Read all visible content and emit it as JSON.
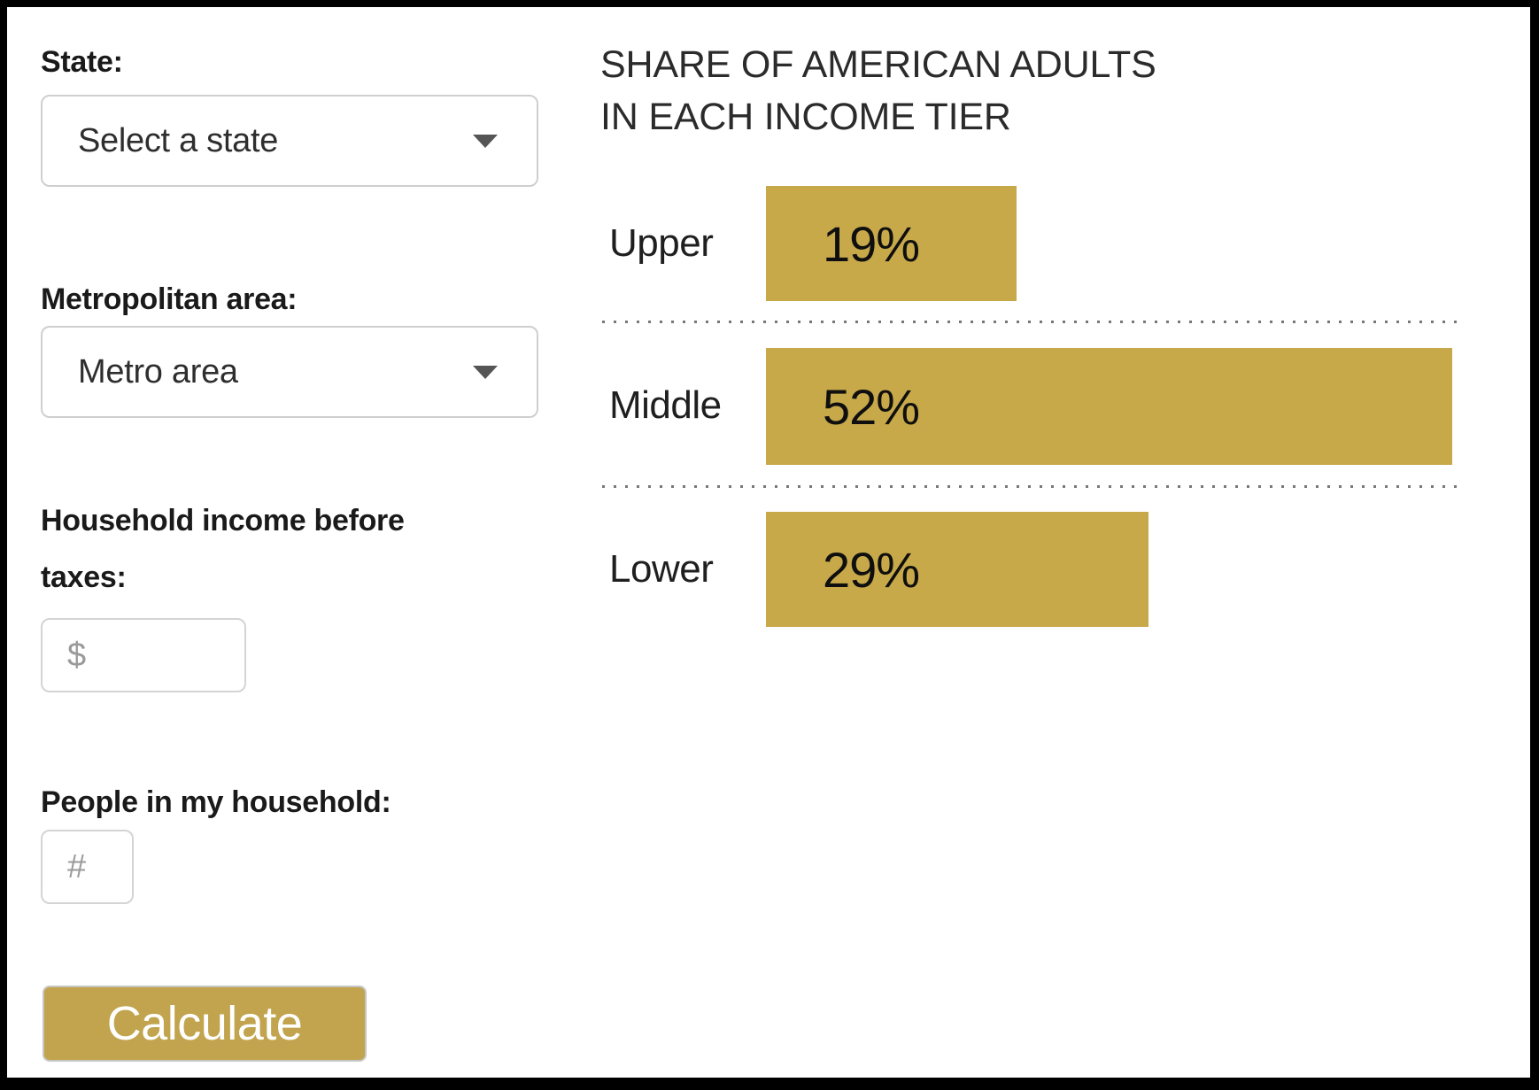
{
  "form": {
    "state_label": "State:",
    "state_select": {
      "value": "Select a state"
    },
    "metro_label": "Metropolitan area:",
    "metro_select": {
      "value": "Metro area"
    },
    "income_label": "Household income before taxes:",
    "income_input": {
      "value": "",
      "placeholder": "$"
    },
    "household_label": "People in my household:",
    "household_input": {
      "value": "",
      "placeholder": "#"
    },
    "calculate_label": "Calculate"
  },
  "chart": {
    "title_lines": {
      "0": "SHARE OF AMERICAN ADULTS",
      "1": "IN EACH INCOME TIER"
    }
  },
  "chart_data": {
    "type": "bar",
    "orientation": "horizontal",
    "title": "SHARE OF AMERICAN ADULTS IN EACH INCOME TIER",
    "categories": [
      "Upper",
      "Middle",
      "Lower"
    ],
    "values": [
      19,
      52,
      29
    ],
    "value_labels": {
      "0": "19%",
      "1": "52%",
      "2": "29%"
    },
    "unit": "percent",
    "xlim": [
      0,
      52
    ],
    "grid": false,
    "legend": false,
    "separator_style": "dotted",
    "bar_color": "#c8a94a"
  },
  "icons": {
    "state_dropdown": "caret-down-icon",
    "metro_dropdown": "caret-down-icon"
  },
  "colors": {
    "bar_gold": "#c8a94a",
    "button_gold": "#c1a44d",
    "frame_black": "#000000",
    "separator_grey": "#777777"
  }
}
